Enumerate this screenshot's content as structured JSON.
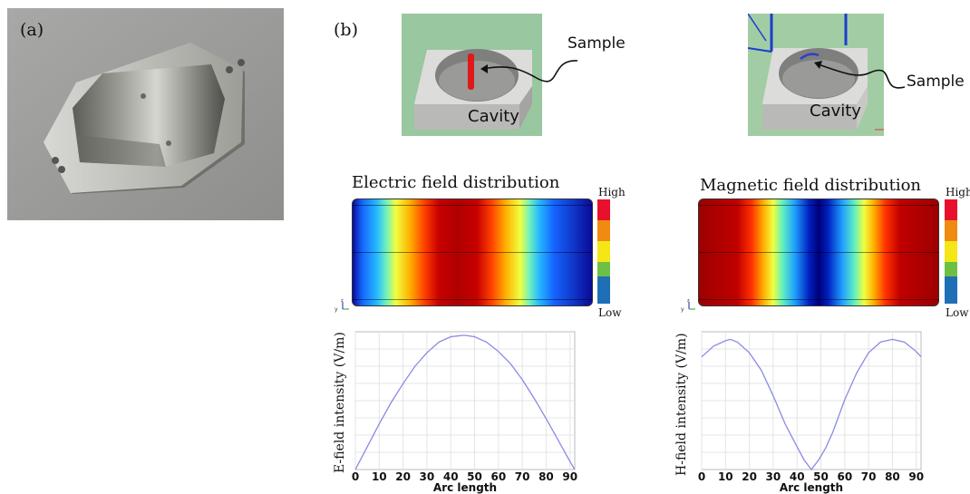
{
  "panels": {
    "a_label": "(a)",
    "b_label": "(b)"
  },
  "cavity_left": {
    "cavity_label": "Cavity",
    "sample_label": "Sample"
  },
  "cavity_right": {
    "cavity_label": "Cavity",
    "sample_label": "Sample"
  },
  "efield_map": {
    "title": "Electric field distribution",
    "high": "High",
    "low": "Low"
  },
  "hfield_map": {
    "title": "Magnetic field distribution",
    "high": "High",
    "low": "Low"
  },
  "legend_colors": [
    "#e8112b",
    "#ef8a12",
    "#f5e616",
    "#6dc043",
    "#1f6fb6"
  ],
  "chart_data": [
    {
      "type": "line",
      "ylabel": "E-field intensity (V/m)",
      "xlabel": "Arc length",
      "xlim": [
        0,
        92
      ],
      "xticks": [
        0,
        10,
        20,
        30,
        40,
        50,
        60,
        70,
        80,
        90
      ],
      "x": [
        0,
        5,
        10,
        15,
        20,
        25,
        30,
        35,
        40,
        45,
        46,
        50,
        55,
        60,
        65,
        70,
        75,
        80,
        85,
        90,
        92
      ],
      "series": [
        {
          "values": [
            0.0,
            0.17,
            0.34,
            0.5,
            0.64,
            0.77,
            0.87,
            0.95,
            0.99,
            1.0,
            1.0,
            0.99,
            0.95,
            0.88,
            0.79,
            0.67,
            0.53,
            0.38,
            0.22,
            0.06,
            0.0
          ]
        }
      ],
      "grid": true
    },
    {
      "type": "line",
      "ylabel": "H-field intensity (V/m)",
      "xlabel": "Arc length",
      "xlim": [
        0,
        92
      ],
      "xticks": [
        0,
        10,
        20,
        30,
        40,
        50,
        60,
        70,
        80,
        90
      ],
      "x": [
        0,
        5,
        10,
        12,
        15,
        20,
        25,
        30,
        35,
        40,
        43,
        46,
        49,
        52,
        55,
        60,
        65,
        70,
        75,
        80,
        85,
        90,
        92
      ],
      "series": [
        {
          "values": [
            0.84,
            0.92,
            0.96,
            0.97,
            0.95,
            0.87,
            0.74,
            0.55,
            0.34,
            0.17,
            0.07,
            0.0,
            0.07,
            0.16,
            0.28,
            0.52,
            0.72,
            0.87,
            0.95,
            0.97,
            0.95,
            0.88,
            0.84
          ]
        }
      ],
      "grid": true
    }
  ]
}
